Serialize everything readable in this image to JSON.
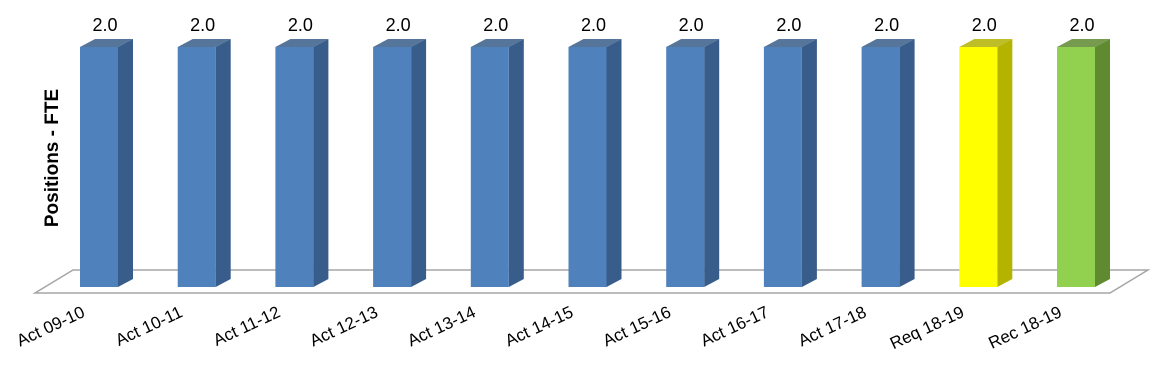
{
  "chart_data": {
    "type": "bar",
    "title": "",
    "xlabel": "",
    "ylabel": "Positions - FTE",
    "ylim": [
      0,
      2.0
    ],
    "grid": false,
    "legend": "none",
    "categories": [
      "Act 09-10",
      "Act 10-11",
      "Act 11-12",
      "Act 12-13",
      "Act 13-14",
      "Act 14-15",
      "Act 15-16",
      "Act 16-17",
      "Act 17-18",
      "Req 18-19",
      "Rec 18-19"
    ],
    "values": [
      2.0,
      2.0,
      2.0,
      2.0,
      2.0,
      2.0,
      2.0,
      2.0,
      2.0,
      2.0,
      2.0
    ],
    "data_labels": [
      "2.0",
      "2.0",
      "2.0",
      "2.0",
      "2.0",
      "2.0",
      "2.0",
      "2.0",
      "2.0",
      "2.0",
      "2.0"
    ],
    "bar_colors": [
      "#4f81bd",
      "#4f81bd",
      "#4f81bd",
      "#4f81bd",
      "#4f81bd",
      "#4f81bd",
      "#4f81bd",
      "#4f81bd",
      "#4f81bd",
      "#ffff00",
      "#92d050"
    ],
    "side_colors": [
      "#385d8a",
      "#385d8a",
      "#385d8a",
      "#385d8a",
      "#385d8a",
      "#385d8a",
      "#385d8a",
      "#385d8a",
      "#385d8a",
      "#b3b300",
      "#5f8a2f"
    ]
  }
}
